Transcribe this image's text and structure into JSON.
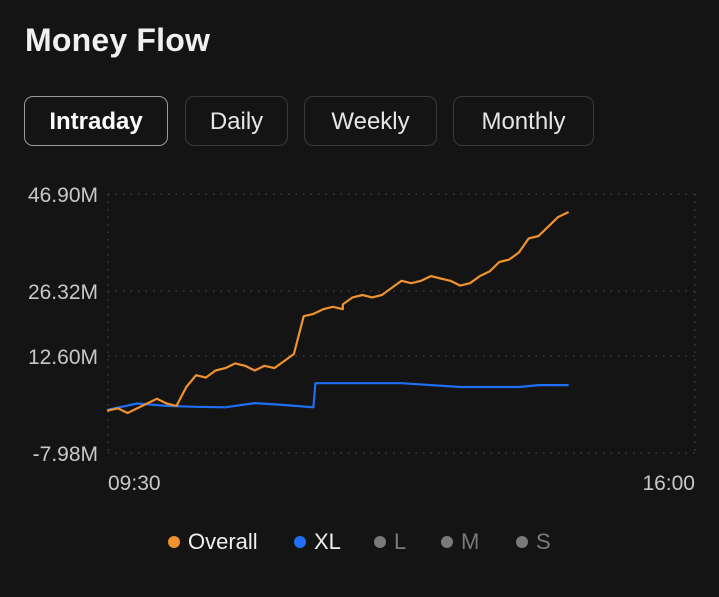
{
  "title": "Money Flow",
  "tabs": [
    {
      "label": "Intraday",
      "active": true
    },
    {
      "label": "Daily",
      "active": false
    },
    {
      "label": "Weekly",
      "active": false
    },
    {
      "label": "Monthly",
      "active": false
    }
  ],
  "colors": {
    "overall": "#f0922e",
    "xl": "#1f6ff5",
    "inactive": "#7a7a7a",
    "grid": "#3a3a3a",
    "axis_text": "#c8c8c8",
    "background": "#141414"
  },
  "legend": [
    {
      "label": "Overall",
      "active": true,
      "color": "#f0922e"
    },
    {
      "label": "XL",
      "active": true,
      "color": "#1f6ff5"
    },
    {
      "label": "L",
      "active": false,
      "color": "#7a7a7a"
    },
    {
      "label": "M",
      "active": false,
      "color": "#7a7a7a"
    },
    {
      "label": "S",
      "active": false,
      "color": "#7a7a7a"
    }
  ],
  "chart_data": {
    "type": "line",
    "x_tick_labels": [
      "09:30",
      "16:00"
    ],
    "y_tick_labels": [
      "46.90M",
      "26.32M",
      "12.60M",
      "-7.98M"
    ],
    "y_ticks": [
      46.9,
      26.32,
      12.6,
      -7.98
    ],
    "grid": true,
    "legend_position": "bottom",
    "series": [
      {
        "name": "Overall",
        "color": "#f0922e",
        "x": [
          "09:30",
          "09:35",
          "09:40",
          "09:45",
          "09:50",
          "09:55",
          "10:00",
          "10:05",
          "10:10",
          "10:15",
          "10:20",
          "10:25",
          "10:30",
          "10:35",
          "10:40",
          "10:45",
          "10:50",
          "10:55",
          "11:00",
          "11:05",
          "11:10",
          "11:15",
          "11:20",
          "11:25",
          "11:30",
          "13:00",
          "13:05",
          "13:10",
          "13:15",
          "13:20",
          "13:25",
          "13:30",
          "13:35",
          "13:40",
          "13:45",
          "13:50",
          "13:55",
          "14:00",
          "14:05",
          "14:10",
          "14:15",
          "14:20",
          "14:25",
          "14:30",
          "14:35",
          "14:40",
          "14:45",
          "14:50",
          "14:55"
        ],
        "values": [
          1.0,
          1.5,
          0.5,
          1.5,
          2.5,
          3.5,
          2.5,
          2.0,
          6.0,
          8.5,
          8.0,
          9.5,
          10.0,
          11.0,
          10.5,
          9.5,
          10.5,
          10.0,
          11.5,
          13.0,
          21.0,
          21.5,
          22.5,
          23.0,
          22.5,
          23.5,
          25.0,
          25.5,
          25.0,
          25.5,
          27.0,
          28.5,
          28.0,
          28.5,
          29.5,
          29.0,
          28.5,
          27.5,
          28.0,
          29.5,
          30.5,
          32.5,
          33.0,
          34.5,
          37.5,
          38.0,
          40.0,
          42.0,
          43.0
        ]
      },
      {
        "name": "XL",
        "color": "#1f6ff5",
        "x": [
          "09:30",
          "09:45",
          "10:00",
          "10:15",
          "10:30",
          "10:45",
          "11:00",
          "11:15",
          "11:16",
          "11:30",
          "13:00",
          "13:30",
          "14:00",
          "14:30",
          "14:40",
          "14:55"
        ],
        "values": [
          1.2,
          2.5,
          2.0,
          1.8,
          1.7,
          2.6,
          2.2,
          1.7,
          6.8,
          6.8,
          6.8,
          6.8,
          6.0,
          6.0,
          6.4,
          6.4
        ]
      }
    ]
  }
}
